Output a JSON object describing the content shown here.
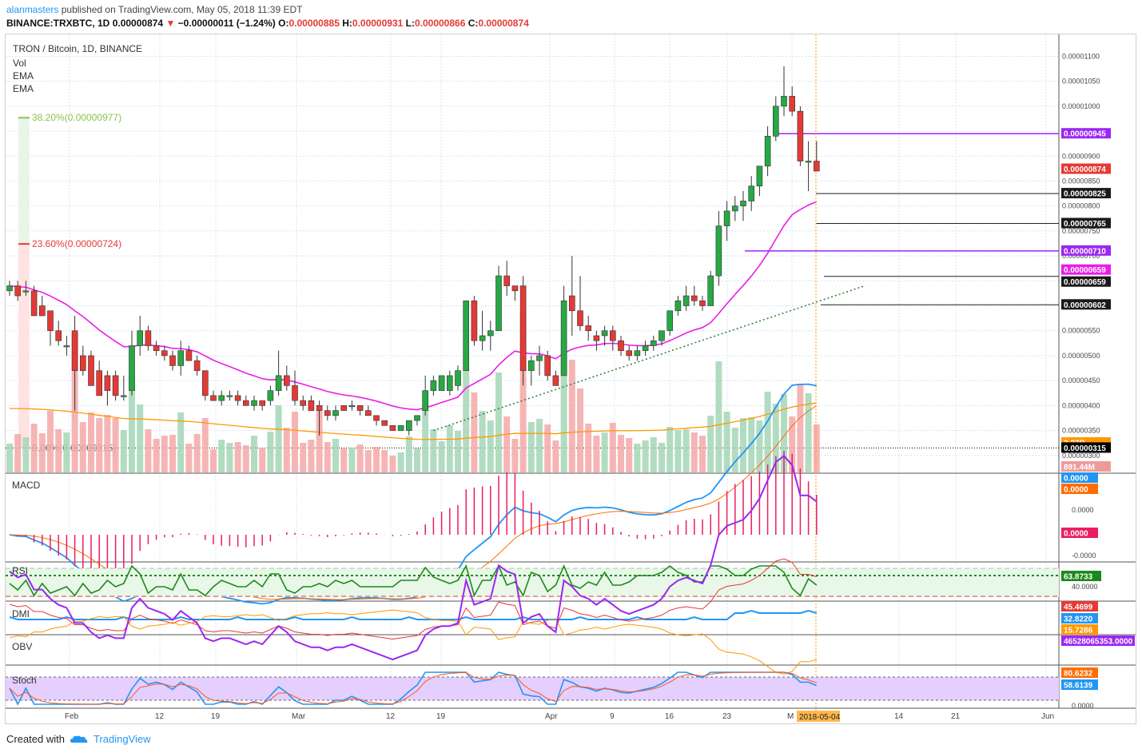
{
  "header": {
    "author": "alanmasters",
    "published_text": "published on TradingView.com, May 05, 2018 11:39 EDT",
    "symbol": "BINANCE:TRXBTC, 1D",
    "last": "0.00000874",
    "change_arrow": "▼",
    "change": "−0.00000011 (−1.24%)",
    "o_label": "O:",
    "o": "0.00000885",
    "h_label": "H:",
    "h": "0.00000931",
    "l_label": "L:",
    "l": "0.00000866",
    "c_label": "C:",
    "c": "0.00000874"
  },
  "legend": {
    "title": "TRON / Bitcoin, 1D, BINANCE",
    "vol": "Vol",
    "ema1": "EMA",
    "ema2": "EMA"
  },
  "fib": {
    "l382": "38.20%(0.00000977)",
    "l236": "23.60%(0.00000724)",
    "l0": "0.00%(0.00000315)"
  },
  "pane_labels": {
    "macd": "MACD",
    "rsi": "RSI",
    "dmi": "DMI",
    "obv": "OBV",
    "stoch": "Stoch"
  },
  "price_axis_ticks": [
    "0.00001100",
    "0.00001050",
    "0.00001000",
    "0.00000950",
    "0.00000900",
    "0.00000850",
    "0.00000800",
    "0.00000750",
    "0.00000700",
    "0.00000650",
    "0.00000600",
    "0.00000550",
    "0.00000500",
    "0.00000450",
    "0.00000400",
    "0.00000350",
    "0.00000300"
  ],
  "price_badges": [
    {
      "text": "0.00000945",
      "color": "#9c27f0"
    },
    {
      "text": "0.00000874",
      "color": "#e53935"
    },
    {
      "text": "0.00000825",
      "color": "#1a1a1a"
    },
    {
      "text": "0.00000765",
      "color": "#1a1a1a"
    },
    {
      "text": "0.00000710",
      "color": "#9c27f0"
    },
    {
      "text": "0.00000659",
      "color": "#e91ee8"
    },
    {
      "text": "0.00000659",
      "color": "#1a1a1a"
    },
    {
      "text": "0.00000602",
      "color": "#1a1a1a"
    },
    {
      "text": "2.27B",
      "color": "#ff9800"
    },
    {
      "text": "0.00000315",
      "color": "#000000"
    },
    {
      "text": "891.44M",
      "color": "#ef9a9a"
    }
  ],
  "macd_axis": [
    "0.0000",
    "0.0000",
    "0.0000",
    "0.0000",
    "-0.0000"
  ],
  "macd_badges": [
    {
      "text": "0.0000",
      "color": "#2196f3"
    },
    {
      "text": "0.0000",
      "color": "#ff6d00"
    },
    {
      "text": "0.0000",
      "color": "#e91e63"
    }
  ],
  "rsi_axis": [
    "40.0000"
  ],
  "rsi_badge": {
    "text": "63.8733",
    "color": "#1b8a1b"
  },
  "dmi_badges": [
    {
      "text": "45.4699",
      "color": "#e53935"
    },
    {
      "text": "32.8220",
      "color": "#2196f3"
    },
    {
      "text": "15.7286",
      "color": "#ff9800"
    }
  ],
  "obv_badge": {
    "text": "46528065353.0000",
    "color": "#9c27f0"
  },
  "stoch_badges": [
    {
      "text": "80.6232",
      "color": "#ff6d00"
    },
    {
      "text": "58.6139",
      "color": "#2196f3"
    }
  ],
  "stoch_axis": [
    "0.0000"
  ],
  "x_ticks": [
    "Feb",
    "12",
    "19",
    "Mar",
    "12",
    "19",
    "Apr",
    "9",
    "16",
    "23",
    "M",
    "14",
    "21",
    "Jun"
  ],
  "x_cursor_label": "2018-05-04",
  "footer": {
    "created_with": "Created with",
    "brand": "TradingView"
  },
  "colors": {
    "up": "#27a844",
    "down": "#e53935",
    "ema_fast": "#e91ee8",
    "ema_slow": "#ff9800",
    "fib_line": "#8bc34a",
    "horizontal": "#9c27f0"
  },
  "chart_data": {
    "type": "candlestick",
    "title": "TRON / Bitcoin, 1D, BINANCE",
    "candles": [
      [
        6.3e-06,
        6.5e-06,
        6.2e-06,
        6.4e-06
      ],
      [
        6.4e-06,
        6.5e-06,
        6.1e-06,
        6.2e-06
      ],
      [
        6.3e-06,
        6.5e-06,
        6.2e-06,
        6.3e-06
      ],
      [
        6.3e-06,
        6.4e-06,
        5.8e-06,
        5.8e-06
      ],
      [
        6e-06,
        6.2e-06,
        5.8e-06,
        5.8e-06
      ],
      [
        5.9e-06,
        5.9e-06,
        5.2e-06,
        5.5e-06
      ],
      [
        5.5e-06,
        5.7e-06,
        5.2e-06,
        5.3e-06
      ],
      [
        5.2e-06,
        5.4e-06,
        5e-06,
        5.2e-06
      ],
      [
        5.5e-06,
        5.8e-06,
        3.9e-06,
        4.7e-06
      ],
      [
        5e-06,
        5.2e-06,
        4.6e-06,
        4.7e-06
      ],
      [
        5e-06,
        5.1e-06,
        4.4e-06,
        4.4e-06
      ],
      [
        4.7e-06,
        4.9e-06,
        4.2e-06,
        4.2e-06
      ],
      [
        4.6e-06,
        4.7e-06,
        4e-06,
        4.3e-06
      ],
      [
        4.6e-06,
        4.7e-06,
        4.1e-06,
        4.2e-06
      ],
      [
        4.2e-06,
        4.6e-06,
        4.1e-06,
        4.2e-06
      ],
      [
        4.3e-06,
        5.5e-06,
        4.2e-06,
        5.2e-06
      ],
      [
        5.2e-06,
        5.8e-06,
        5e-06,
        5.5e-06
      ],
      [
        5.5e-06,
        5.6e-06,
        5.1e-06,
        5.2e-06
      ],
      [
        5.2e-06,
        5.3e-06,
        5e-06,
        5.1e-06
      ],
      [
        5.1e-06,
        5.2e-06,
        4.9e-06,
        5e-06
      ],
      [
        5e-06,
        5.1e-06,
        4.7e-06,
        4.8e-06
      ],
      [
        4.8e-06,
        5.3e-06,
        4.6e-06,
        5.1e-06
      ],
      [
        5.1e-06,
        5.2e-06,
        4.9e-06,
        4.9e-06
      ],
      [
        4.9e-06,
        5e-06,
        4.6e-06,
        4.7e-06
      ],
      [
        4.7e-06,
        4.7e-06,
        4.1e-06,
        4.2e-06
      ],
      [
        4.2e-06,
        4.3e-06,
        4.1e-06,
        4.1e-06
      ],
      [
        4.1e-06,
        4.3e-06,
        4e-06,
        4.2e-06
      ],
      [
        4.2e-06,
        4.3e-06,
        4.1e-06,
        4.2e-06
      ],
      [
        4.2e-06,
        4.3e-06,
        4e-06,
        4.1e-06
      ],
      [
        4.1e-06,
        4.2e-06,
        4e-06,
        4e-06
      ],
      [
        4e-06,
        4.2e-06,
        3.9e-06,
        4.1e-06
      ],
      [
        4.1e-06,
        4.1e-06,
        3.9e-06,
        4e-06
      ],
      [
        4.1e-06,
        4.4e-06,
        4e-06,
        4.3e-06
      ],
      [
        4.3e-06,
        5.1e-06,
        4.2e-06,
        4.6e-06
      ],
      [
        4.6e-06,
        4.8e-06,
        4.3e-06,
        4.4e-06
      ],
      [
        4.4e-06,
        4.7e-06,
        4e-06,
        4.1e-06
      ],
      [
        4.1e-06,
        4.2e-06,
        3.9e-06,
        4e-06
      ],
      [
        4.1e-06,
        4.2e-06,
        3.9e-06,
        3.9e-06
      ],
      [
        4e-06,
        4.1e-06,
        3.4e-06,
        3.9e-06
      ],
      [
        3.9e-06,
        4e-06,
        3.7e-06,
        3.8e-06
      ],
      [
        3.8e-06,
        4e-06,
        3.7e-06,
        3.9e-06
      ],
      [
        4e-06,
        4e-06,
        3.9e-06,
        3.9e-06
      ],
      [
        4e-06,
        4.1e-06,
        3.9e-06,
        4e-06
      ],
      [
        4e-06,
        4e-06,
        3.8e-06,
        3.9e-06
      ],
      [
        3.9e-06,
        4e-06,
        3.8e-06,
        3.8e-06
      ],
      [
        3.8e-06,
        3.8e-06,
        3.6e-06,
        3.7e-06
      ],
      [
        3.7e-06,
        3.7e-06,
        3.6e-06,
        3.6e-06
      ],
      [
        3.6e-06,
        3.6e-06,
        3.5e-06,
        3.5e-06
      ],
      [
        3.5e-06,
        3.6e-06,
        3.5e-06,
        3.6e-06
      ],
      [
        3.5e-06,
        3.7e-06,
        3.4e-06,
        3.7e-06
      ],
      [
        3.7e-06,
        3.8e-06,
        3.6e-06,
        3.8e-06
      ],
      [
        3.9e-06,
        4.6e-06,
        3.8e-06,
        4.3e-06
      ],
      [
        4.3e-06,
        4.6e-06,
        4.2e-06,
        4.5e-06
      ],
      [
        4.3e-06,
        4.6e-06,
        4.3e-06,
        4.6e-06
      ],
      [
        4.3e-06,
        4.7e-06,
        4.2e-06,
        4.6e-06
      ],
      [
        4.4e-06,
        4.8e-06,
        4.3e-06,
        4.7e-06
      ],
      [
        4.7e-06,
        6.1e-06,
        4.7e-06,
        6.1e-06
      ],
      [
        6.1e-06,
        6.2e-06,
        5.2e-06,
        5.3e-06
      ],
      [
        5.3e-06,
        5.9e-06,
        5.1e-06,
        5.4e-06
      ],
      [
        5.4e-06,
        5.7e-06,
        5.1e-06,
        5.5e-06
      ],
      [
        5.5e-06,
        6.8e-06,
        5.5e-06,
        6.6e-06
      ],
      [
        6.6e-06,
        6.9e-06,
        6.2e-06,
        6.4e-06
      ],
      [
        6.4e-06,
        6.4e-06,
        6.1e-06,
        6.3e-06
      ],
      [
        6.4e-06,
        6.6e-06,
        4.4e-06,
        4.7e-06
      ],
      [
        4.7e-06,
        5e-06,
        4.4e-06,
        4.9e-06
      ],
      [
        4.9e-06,
        5.2e-06,
        4.6e-06,
        5e-06
      ],
      [
        5e-06,
        5.1e-06,
        4.5e-06,
        4.6e-06
      ],
      [
        4.6e-06,
        4.7e-06,
        4.4e-06,
        4.4e-06
      ],
      [
        4.6e-06,
        6.4e-06,
        4.6e-06,
        6.1e-06
      ],
      [
        6.2e-06,
        7e-06,
        5.4e-06,
        5.9e-06
      ],
      [
        5.9e-06,
        6.6e-06,
        5.5e-06,
        5.6e-06
      ],
      [
        5.6e-06,
        5.8e-06,
        5.3e-06,
        5.5e-06
      ],
      [
        5.4e-06,
        5.5e-06,
        5.1e-06,
        5.3e-06
      ],
      [
        5.4e-06,
        5.6e-06,
        5.2e-06,
        5.5e-06
      ],
      [
        5.5e-06,
        5.6e-06,
        5.1e-06,
        5.3e-06
      ],
      [
        5.3e-06,
        5.4e-06,
        5e-06,
        5.1e-06
      ],
      [
        5.1e-06,
        5.2e-06,
        4.9e-06,
        5e-06
      ],
      [
        5e-06,
        5.2e-06,
        4.9e-06,
        5.1e-06
      ],
      [
        5.1e-06,
        5.3e-06,
        5e-06,
        5.2e-06
      ],
      [
        5.2e-06,
        5.4e-06,
        5.1e-06,
        5.3e-06
      ],
      [
        5.3e-06,
        5.5e-06,
        5.2e-06,
        5.5e-06
      ],
      [
        5.5e-06,
        5.9e-06,
        5.4e-06,
        5.9e-06
      ],
      [
        5.9e-06,
        6.2e-06,
        5.8e-06,
        6.1e-06
      ],
      [
        6e-06,
        6.4e-06,
        5.9e-06,
        6.2e-06
      ],
      [
        6.2e-06,
        6.4e-06,
        6e-06,
        6.1e-06
      ],
      [
        6.1e-06,
        6.2e-06,
        5.9e-06,
        6e-06
      ],
      [
        6e-06,
        6.7e-06,
        6e-06,
        6.6e-06
      ],
      [
        6.6e-06,
        7.9e-06,
        6.4e-06,
        7.6e-06
      ],
      [
        7.6e-06,
        8.1e-06,
        7.3e-06,
        7.9e-06
      ],
      [
        7.9e-06,
        8.2e-06,
        7.7e-06,
        8e-06
      ],
      [
        8e-06,
        8.3e-06,
        7.7e-06,
        8.1e-06
      ],
      [
        8.1e-06,
        8.6e-06,
        7.9e-06,
        8.4e-06
      ],
      [
        8.4e-06,
        8.8e-06,
        8.2e-06,
        8.8e-06
      ],
      [
        8.8e-06,
        9.6e-06,
        8.6e-06,
        9.4e-06
      ],
      [
        9.4e-06,
        1.02e-05,
        9.3e-06,
        1e-05
      ],
      [
        1e-05,
        1.08e-05,
        9.8e-06,
        1.02e-05
      ],
      [
        1.02e-05,
        1.04e-05,
        9.8e-06,
        9.9e-06
      ],
      [
        9.9e-06,
        1e-05,
        8.8e-06,
        8.9e-06
      ],
      [
        8.9e-06,
        9.3e-06,
        8.3e-06,
        8.9e-06
      ],
      [
        8.9e-06,
        9.3e-06,
        8.7e-06,
        8.7e-06
      ]
    ],
    "ylim": [
      2.9e-06,
      1.12e-05
    ],
    "x_ticks": [
      "Feb",
      "12",
      "19",
      "Mar",
      "12",
      "19",
      "Apr",
      "9",
      "16",
      "23",
      "M",
      "14",
      "21",
      "Jun"
    ]
  }
}
